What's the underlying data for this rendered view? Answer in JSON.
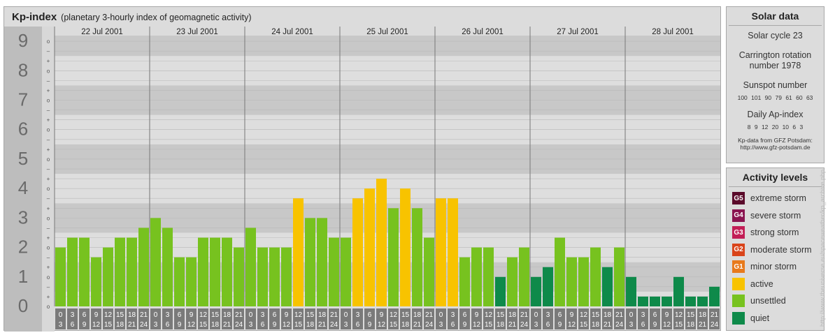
{
  "header": {
    "title": "Kp-index",
    "subtitle": "(planetary 3-hourly index of geomagnetic activity)"
  },
  "chart_data": {
    "type": "bar",
    "title": "Kp-index",
    "subtitle": "(planetary 3-hourly index of geomagnetic activity)",
    "ylim": [
      0,
      9
    ],
    "y_major_ticks": [
      "0",
      "1",
      "2",
      "3",
      "4",
      "5",
      "6",
      "7",
      "8",
      "9"
    ],
    "y_minor_labels": [
      "o",
      "+",
      "–"
    ],
    "days": [
      "22 Jul 2001",
      "23 Jul 2001",
      "24 Jul 2001",
      "25 Jul 2001",
      "26 Jul 2001",
      "27 Jul 2001",
      "28 Jul 2001"
    ],
    "interval_labels": [
      [
        "0",
        "3"
      ],
      [
        "3",
        "6"
      ],
      [
        "6",
        "9"
      ],
      [
        "9",
        "12"
      ],
      [
        "12",
        "15"
      ],
      [
        "15",
        "18"
      ],
      [
        "18",
        "21"
      ],
      [
        "21",
        "24"
      ]
    ],
    "values": [
      [
        2.0,
        2.333,
        2.333,
        1.667,
        2.0,
        2.333,
        2.333,
        2.667
      ],
      [
        3.0,
        2.667,
        1.667,
        1.667,
        2.333,
        2.333,
        2.333,
        2.0
      ],
      [
        2.667,
        2.0,
        2.0,
        2.0,
        3.667,
        3.0,
        3.0,
        2.333
      ],
      [
        2.333,
        3.667,
        4.0,
        4.333,
        3.333,
        4.0,
        3.333,
        2.333
      ],
      [
        3.667,
        3.667,
        1.667,
        2.0,
        2.0,
        1.0,
        1.667,
        2.0
      ],
      [
        1.0,
        1.333,
        2.333,
        1.667,
        1.667,
        2.0,
        1.333,
        2.0
      ],
      [
        1.0,
        0.333,
        0.333,
        0.333,
        1.0,
        0.333,
        0.333,
        0.667
      ]
    ],
    "series": [
      {
        "name": "quiet",
        "color": "#0e8a4a"
      },
      {
        "name": "unsettled",
        "color": "#77c21f"
      },
      {
        "name": "active",
        "color": "#f8c300"
      }
    ]
  },
  "solar": {
    "title": "Solar data",
    "cycle": "Solar cycle 23",
    "carrington_line1": "Carrington rotation",
    "carrington_line2": "number 1978",
    "sunspot_title": "Sunspot number",
    "sunspot_values": "100 101 90 79 61 60 63",
    "ap_title": "Daily Ap-index",
    "ap_values": "8 9 12 20 10 6 3",
    "source_line1": "Kp-data from GFZ Potsdam:",
    "source_line2": "http://www.gfz-potsdam.de"
  },
  "activity": {
    "title": "Activity levels",
    "levels": [
      {
        "badge": "G5",
        "label": "extreme storm",
        "color": "#5a0a2a"
      },
      {
        "badge": "G4",
        "label": "severe storm",
        "color": "#8a1450"
      },
      {
        "badge": "G3",
        "label": "strong storm",
        "color": "#c21e56"
      },
      {
        "badge": "G2",
        "label": "moderate storm",
        "color": "#d9441a"
      },
      {
        "badge": "G1",
        "label": "minor storm",
        "color": "#e87a1c"
      },
      {
        "badge": "",
        "label": "active",
        "color": "#f8c300"
      },
      {
        "badge": "",
        "label": "unsettled",
        "color": "#77c21f"
      },
      {
        "badge": "",
        "label": "quiet",
        "color": "#0e8a4a"
      }
    ]
  },
  "credit": "http://www.theuniverse.eu/spaceweather/kp_archive.php"
}
